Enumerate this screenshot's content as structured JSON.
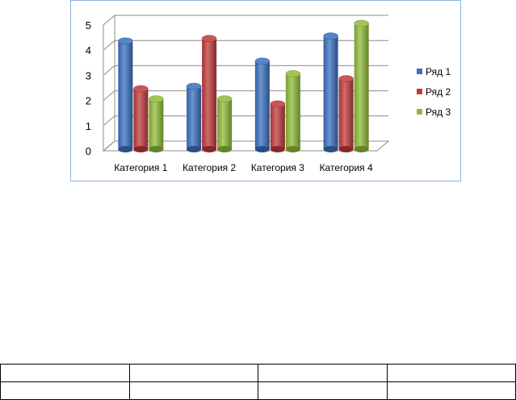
{
  "chart_data": {
    "type": "bar",
    "categories": [
      "Категория 1",
      "Категория 2",
      "Категория 3",
      "Категория 4"
    ],
    "series": [
      {
        "name": "Ряд 1",
        "color": "#3a70c0",
        "values": [
          4.3,
          2.5,
          3.5,
          4.5
        ]
      },
      {
        "name": "Ряд 2",
        "color": "#c0393b",
        "values": [
          2.4,
          4.4,
          1.8,
          2.8
        ]
      },
      {
        "name": "Ряд 3",
        "color": "#8fbb38",
        "values": [
          2.0,
          2.0,
          3.0,
          5.0
        ]
      }
    ],
    "yticks": [
      "0",
      "1",
      "2",
      "3",
      "4",
      "5"
    ],
    "ylim": [
      0,
      5
    ],
    "grid": true,
    "legend_position": "right"
  },
  "table": {
    "rows": [
      [
        "",
        "",
        "",
        ""
      ],
      [
        "",
        "",
        "",
        ""
      ]
    ]
  }
}
